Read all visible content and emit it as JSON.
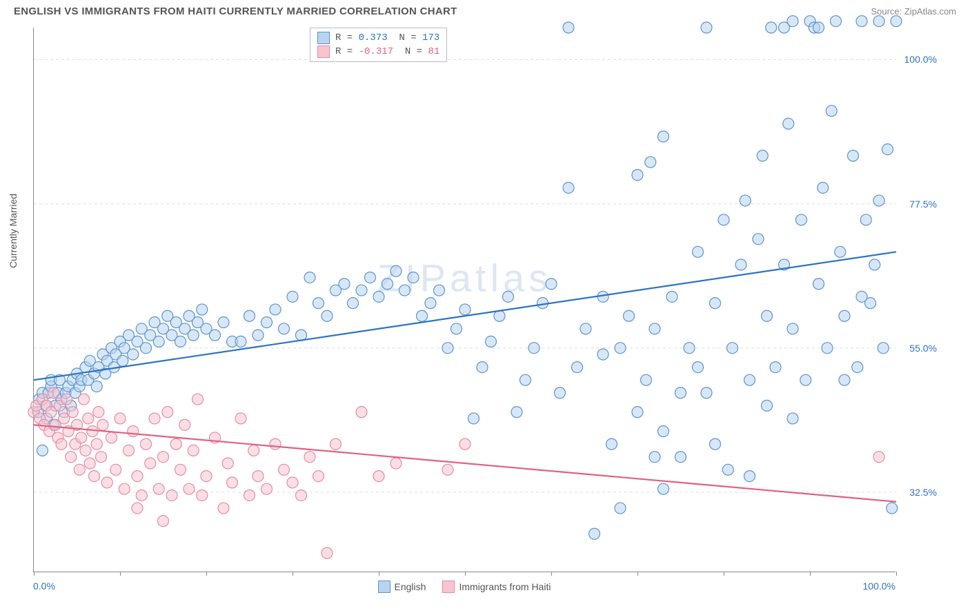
{
  "header": {
    "title": "ENGLISH VS IMMIGRANTS FROM HAITI CURRENTLY MARRIED CORRELATION CHART",
    "source": "Source: ZipAtlas.com"
  },
  "watermark": "ZIPatlas",
  "chart": {
    "type": "scatter",
    "ylabel": "Currently Married",
    "xlim": [
      0,
      100
    ],
    "ylim": [
      20,
      105
    ],
    "x_axis_labels": {
      "left": "0.0%",
      "right": "100.0%"
    },
    "x_tick_positions": [
      0,
      10,
      20,
      30,
      40,
      50,
      60,
      70,
      80,
      90,
      100
    ],
    "y_ticks": [
      {
        "value": 32.5,
        "label": "32.5%"
      },
      {
        "value": 55.0,
        "label": "55.0%"
      },
      {
        "value": 77.5,
        "label": "77.5%"
      },
      {
        "value": 100.0,
        "label": "100.0%"
      }
    ],
    "grid_color": "#dddddd",
    "axis_color": "#888888",
    "background_color": "#ffffff",
    "marker_radius": 8,
    "marker_opacity": 0.55,
    "line_width": 2.2,
    "series": [
      {
        "name": "English",
        "color_fill": "#b8d4ee",
        "color_stroke": "#5a94d0",
        "line_color": "#2b73c2",
        "text_color": "#2b73c2",
        "stats": {
          "R": "0.373",
          "N": "173"
        },
        "trend": {
          "x1": 0,
          "y1": 50,
          "x2": 100,
          "y2": 70
        },
        "points": [
          [
            0.5,
            45
          ],
          [
            0.6,
            47
          ],
          [
            1,
            48
          ],
          [
            1,
            39
          ],
          [
            1.4,
            46
          ],
          [
            1.5,
            44
          ],
          [
            1.7,
            48
          ],
          [
            2,
            49
          ],
          [
            2,
            50
          ],
          [
            2.3,
            43
          ],
          [
            2.5,
            46
          ],
          [
            2.8,
            48
          ],
          [
            3,
            50
          ],
          [
            3.2,
            47
          ],
          [
            3.5,
            45
          ],
          [
            3.7,
            48
          ],
          [
            4,
            49
          ],
          [
            4.3,
            46
          ],
          [
            4.5,
            50
          ],
          [
            4.8,
            48
          ],
          [
            5,
            51
          ],
          [
            5.3,
            49
          ],
          [
            5.5,
            50
          ],
          [
            6,
            52
          ],
          [
            6.3,
            50
          ],
          [
            6.5,
            53
          ],
          [
            7,
            51
          ],
          [
            7.3,
            49
          ],
          [
            7.5,
            52
          ],
          [
            8,
            54
          ],
          [
            8.3,
            51
          ],
          [
            8.5,
            53
          ],
          [
            9,
            55
          ],
          [
            9.3,
            52
          ],
          [
            9.5,
            54
          ],
          [
            10,
            56
          ],
          [
            10.3,
            53
          ],
          [
            10.5,
            55
          ],
          [
            11,
            57
          ],
          [
            11.5,
            54
          ],
          [
            12,
            56
          ],
          [
            12.5,
            58
          ],
          [
            13,
            55
          ],
          [
            13.5,
            57
          ],
          [
            14,
            59
          ],
          [
            14.5,
            56
          ],
          [
            15,
            58
          ],
          [
            15.5,
            60
          ],
          [
            16,
            57
          ],
          [
            16.5,
            59
          ],
          [
            17,
            56
          ],
          [
            17.5,
            58
          ],
          [
            18,
            60
          ],
          [
            18.5,
            57
          ],
          [
            19,
            59
          ],
          [
            19.5,
            61
          ],
          [
            20,
            58
          ],
          [
            21,
            57
          ],
          [
            22,
            59
          ],
          [
            23,
            56
          ],
          [
            24,
            56
          ],
          [
            25,
            60
          ],
          [
            26,
            57
          ],
          [
            27,
            59
          ],
          [
            28,
            61
          ],
          [
            29,
            58
          ],
          [
            30,
            63
          ],
          [
            31,
            57
          ],
          [
            32,
            66
          ],
          [
            33,
            62
          ],
          [
            34,
            60
          ],
          [
            35,
            64
          ],
          [
            36,
            65
          ],
          [
            37,
            62
          ],
          [
            38,
            64
          ],
          [
            39,
            66
          ],
          [
            40,
            63
          ],
          [
            41,
            65
          ],
          [
            42,
            67
          ],
          [
            43,
            64
          ],
          [
            44,
            66
          ],
          [
            45,
            60
          ],
          [
            46,
            62
          ],
          [
            47,
            64
          ],
          [
            48,
            55
          ],
          [
            49,
            58
          ],
          [
            50,
            61
          ],
          [
            51,
            44
          ],
          [
            52,
            52
          ],
          [
            53,
            56
          ],
          [
            54,
            60
          ],
          [
            55,
            63
          ],
          [
            56,
            45
          ],
          [
            57,
            50
          ],
          [
            58,
            55
          ],
          [
            59,
            62
          ],
          [
            60,
            65
          ],
          [
            61,
            48
          ],
          [
            62,
            80
          ],
          [
            63,
            52
          ],
          [
            64,
            58
          ],
          [
            65,
            26
          ],
          [
            66,
            63
          ],
          [
            67,
            40
          ],
          [
            68,
            55
          ],
          [
            69,
            60
          ],
          [
            70,
            82
          ],
          [
            70,
            45
          ],
          [
            71,
            50
          ],
          [
            71.5,
            84
          ],
          [
            72,
            58
          ],
          [
            73,
            42
          ],
          [
            73,
            88
          ],
          [
            74,
            63
          ],
          [
            75,
            38
          ],
          [
            76,
            55
          ],
          [
            77,
            70
          ],
          [
            78,
            48
          ],
          [
            79,
            62
          ],
          [
            80,
            75
          ],
          [
            80.5,
            36
          ],
          [
            81,
            55
          ],
          [
            82,
            68
          ],
          [
            82.5,
            78
          ],
          [
            83,
            50
          ],
          [
            84,
            72
          ],
          [
            84.5,
            85
          ],
          [
            85,
            60
          ],
          [
            85.5,
            105
          ],
          [
            86,
            52
          ],
          [
            87,
            105
          ],
          [
            87,
            68
          ],
          [
            87.5,
            90
          ],
          [
            88,
            106
          ],
          [
            88,
            58
          ],
          [
            89,
            75
          ],
          [
            90,
            106
          ],
          [
            89.5,
            50
          ],
          [
            90.5,
            105
          ],
          [
            91,
            65
          ],
          [
            91.5,
            80
          ],
          [
            92,
            55
          ],
          [
            93,
            106
          ],
          [
            92.5,
            92
          ],
          [
            93.5,
            70
          ],
          [
            94,
            60
          ],
          [
            95,
            85
          ],
          [
            95.5,
            52
          ],
          [
            96,
            106
          ],
          [
            96.5,
            75
          ],
          [
            97,
            62
          ],
          [
            98,
            106
          ],
          [
            97.5,
            68
          ],
          [
            98.5,
            55
          ],
          [
            99,
            86
          ],
          [
            99.5,
            30
          ],
          [
            100,
            106
          ],
          [
            94,
            50
          ],
          [
            96,
            63
          ],
          [
            78,
            105
          ],
          [
            75,
            48
          ],
          [
            77,
            52
          ],
          [
            79,
            40
          ],
          [
            68,
            30
          ],
          [
            62,
            105
          ],
          [
            83,
            35
          ],
          [
            88,
            44
          ],
          [
            72,
            38
          ],
          [
            66,
            54
          ],
          [
            73,
            33
          ],
          [
            85,
            46
          ],
          [
            91,
            105
          ],
          [
            98,
            78
          ]
        ]
      },
      {
        "name": "Immigrants from Haiti",
        "color_fill": "#f7c5d0",
        "color_stroke": "#e78aa2",
        "line_color": "#e16083",
        "text_color": "#e16083",
        "stats": {
          "R": "-0.317",
          "N": "81"
        },
        "trend": {
          "x1": 0,
          "y1": 43,
          "x2": 100,
          "y2": 31
        },
        "points": [
          [
            0,
            45
          ],
          [
            0.3,
            46
          ],
          [
            0.7,
            44
          ],
          [
            1,
            47
          ],
          [
            1.2,
            43
          ],
          [
            1.5,
            46
          ],
          [
            1.8,
            42
          ],
          [
            2,
            45
          ],
          [
            2.3,
            48
          ],
          [
            2.5,
            43
          ],
          [
            2.8,
            41
          ],
          [
            3,
            46
          ],
          [
            3.2,
            40
          ],
          [
            3.5,
            44
          ],
          [
            3.8,
            47
          ],
          [
            4,
            42
          ],
          [
            4.3,
            38
          ],
          [
            4.5,
            45
          ],
          [
            4.8,
            40
          ],
          [
            5,
            43
          ],
          [
            5.3,
            36
          ],
          [
            5.5,
            41
          ],
          [
            5.8,
            47
          ],
          [
            6,
            39
          ],
          [
            6.3,
            44
          ],
          [
            6.5,
            37
          ],
          [
            6.8,
            42
          ],
          [
            7,
            35
          ],
          [
            7.3,
            40
          ],
          [
            7.5,
            45
          ],
          [
            7.8,
            38
          ],
          [
            8,
            43
          ],
          [
            8.5,
            34
          ],
          [
            9,
            41
          ],
          [
            9.5,
            36
          ],
          [
            10,
            44
          ],
          [
            10.5,
            33
          ],
          [
            11,
            39
          ],
          [
            11.5,
            42
          ],
          [
            12,
            35
          ],
          [
            12.5,
            32
          ],
          [
            13,
            40
          ],
          [
            13.5,
            37
          ],
          [
            14,
            44
          ],
          [
            14.5,
            33
          ],
          [
            15,
            38
          ],
          [
            15.5,
            45
          ],
          [
            16,
            32
          ],
          [
            16.5,
            40
          ],
          [
            17,
            36
          ],
          [
            17.5,
            43
          ],
          [
            18,
            33
          ],
          [
            18.5,
            39
          ],
          [
            19,
            47
          ],
          [
            19.5,
            32
          ],
          [
            20,
            35
          ],
          [
            21,
            41
          ],
          [
            22,
            30
          ],
          [
            22.5,
            37
          ],
          [
            23,
            34
          ],
          [
            24,
            44
          ],
          [
            25,
            32
          ],
          [
            25.5,
            39
          ],
          [
            26,
            35
          ],
          [
            27,
            33
          ],
          [
            28,
            40
          ],
          [
            29,
            36
          ],
          [
            30,
            34
          ],
          [
            31,
            32
          ],
          [
            32,
            38
          ],
          [
            33,
            35
          ],
          [
            34,
            23
          ],
          [
            35,
            40
          ],
          [
            38,
            45
          ],
          [
            40,
            35
          ],
          [
            42,
            37
          ],
          [
            48,
            36
          ],
          [
            50,
            40
          ],
          [
            12,
            30
          ],
          [
            15,
            28
          ],
          [
            98,
            38
          ]
        ]
      }
    ],
    "legend": {
      "items": [
        {
          "label": "English",
          "fill": "#b8d4ee",
          "stroke": "#5a94d0"
        },
        {
          "label": "Immigrants from Haiti",
          "fill": "#f7c5d0",
          "stroke": "#e78aa2"
        }
      ]
    }
  }
}
